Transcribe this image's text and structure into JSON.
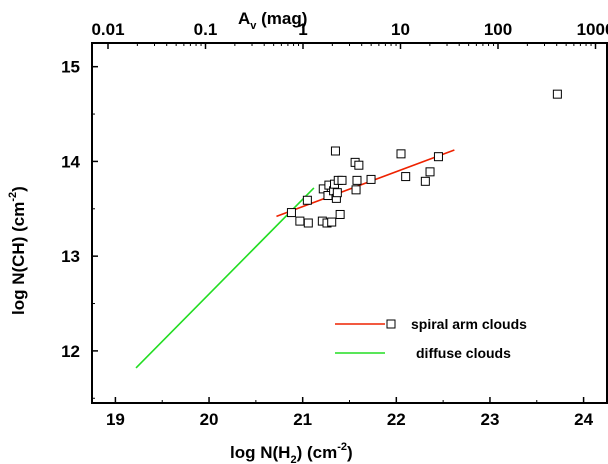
{
  "chart_data": {
    "type": "scatter",
    "title": "",
    "xlabel": {
      "base": "log N(H",
      "sub": "2",
      "mid": ") (cm",
      "sup": "-2",
      "end": ")"
    },
    "ylabel": {
      "base": "log N(CH) (cm",
      "sup": "-2",
      "end": ")"
    },
    "x2label": {
      "base": "A",
      "sub": "v",
      "end": " (mag)"
    },
    "xlim": [
      18.75,
      24.25
    ],
    "ylim": [
      11.45,
      15.25
    ],
    "x_ticks": [
      19,
      20,
      21,
      22,
      23,
      24
    ],
    "x_tick_labels": [
      "19",
      "20",
      "21",
      "22",
      "23",
      "24"
    ],
    "y_ticks": [
      12,
      13,
      14,
      15
    ],
    "y_tick_labels": [
      "12",
      "13",
      "14",
      "15"
    ],
    "x2_ticks": [
      {
        "label": "0.01",
        "value": 0.01
      },
      {
        "label": "0.1",
        "value": 0.1
      },
      {
        "label": "1",
        "value": 1
      },
      {
        "label": "10",
        "value": 10
      },
      {
        "label": "100",
        "value": 100
      },
      {
        "label": "1000",
        "value": 1000
      }
    ],
    "x2_log_scale": true,
    "grid": false,
    "legend_position": "bottom-right",
    "series": [
      {
        "name": "spiral arm clouds",
        "kind": "points",
        "marker": "open-square",
        "color": "#000000",
        "points": [
          [
            20.88,
            13.46
          ],
          [
            20.97,
            13.37
          ],
          [
            21.05,
            13.59
          ],
          [
            21.06,
            13.35
          ],
          [
            21.21,
            13.37
          ],
          [
            21.22,
            13.71
          ],
          [
            21.26,
            13.35
          ],
          [
            21.27,
            13.64
          ],
          [
            21.28,
            13.75
          ],
          [
            21.31,
            13.36
          ],
          [
            21.33,
            13.69
          ],
          [
            21.34,
            13.76
          ],
          [
            21.35,
            14.11
          ],
          [
            21.36,
            13.61
          ],
          [
            21.37,
            13.67
          ],
          [
            21.38,
            13.8
          ],
          [
            21.4,
            13.44
          ],
          [
            21.42,
            13.8
          ],
          [
            21.56,
            13.99
          ],
          [
            21.57,
            13.7
          ],
          [
            21.58,
            13.8
          ],
          [
            21.6,
            13.96
          ],
          [
            21.73,
            13.81
          ],
          [
            22.05,
            14.08
          ],
          [
            22.1,
            13.84
          ],
          [
            22.31,
            13.79
          ],
          [
            22.36,
            13.89
          ],
          [
            22.45,
            14.05
          ],
          [
            23.72,
            14.71
          ]
        ]
      },
      {
        "name": "spiral arm clouds",
        "kind": "line",
        "color": "#ee2200",
        "x": [
          20.72,
          22.62
        ],
        "y": [
          13.42,
          14.12
        ]
      },
      {
        "name": "diffuse clouds",
        "kind": "line",
        "color": "#22dd22",
        "x": [
          19.22,
          21.12
        ],
        "y": [
          11.82,
          13.72
        ]
      }
    ]
  }
}
